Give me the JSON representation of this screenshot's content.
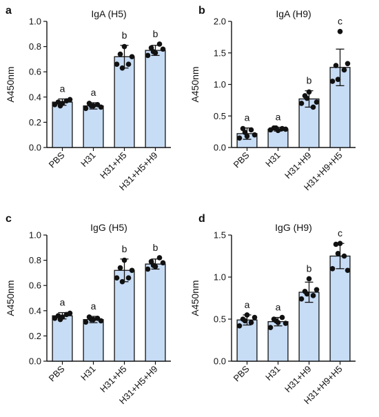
{
  "chart_data": [
    {
      "panel_label": "a",
      "type": "bar",
      "title": "IgA (H5)",
      "ylabel": "A450nm",
      "ylim": [
        0,
        1.0
      ],
      "yticks": [
        "0.0",
        "0.2",
        "0.4",
        "0.6",
        "0.8",
        "1.0"
      ],
      "categories": [
        "PBS",
        "H31",
        "H31+H5",
        "H31+H5+H9"
      ],
      "values": [
        0.36,
        0.33,
        0.72,
        0.77
      ],
      "errors": [
        0.025,
        0.025,
        0.09,
        0.04
      ],
      "letters": [
        "a",
        "a",
        "b",
        "b"
      ],
      "points": [
        [
          0.34,
          0.36,
          0.35,
          0.37,
          0.38,
          0.33
        ],
        [
          0.31,
          0.35,
          0.33,
          0.34,
          0.32,
          0.33
        ],
        [
          0.66,
          0.74,
          0.8,
          0.66,
          0.72,
          0.63
        ],
        [
          0.73,
          0.79,
          0.75,
          0.82,
          0.78,
          0.76
        ]
      ]
    },
    {
      "panel_label": "b",
      "type": "bar",
      "title": "IgA (H9)",
      "ylabel": "A450nm",
      "ylim": [
        0,
        2.0
      ],
      "yticks": [
        "0.0",
        "0.5",
        "1.0",
        "1.5",
        "2.0"
      ],
      "categories": [
        "PBS",
        "H31",
        "H31+H9",
        "H31+H9+H5"
      ],
      "values": [
        0.22,
        0.29,
        0.77,
        1.27
      ],
      "errors": [
        0.09,
        0.03,
        0.13,
        0.29
      ],
      "letters": [
        "a",
        "a",
        "b",
        "c"
      ],
      "points": [
        [
          0.15,
          0.3,
          0.18,
          0.28,
          0.2,
          0.24
        ],
        [
          0.28,
          0.31,
          0.27,
          0.3,
          0.29,
          0.31
        ],
        [
          0.7,
          0.82,
          0.88,
          0.64,
          0.72,
          0.78
        ],
        [
          1.05,
          1.3,
          1.84,
          1.23,
          1.33,
          1.08
        ]
      ]
    },
    {
      "panel_label": "c",
      "type": "bar",
      "title": "IgG (H5)",
      "ylabel": "A450nm",
      "ylim": [
        0,
        1.0
      ],
      "yticks": [
        "0.0",
        "0.2",
        "0.4",
        "0.6",
        "0.8",
        "1.0"
      ],
      "categories": [
        "PBS",
        "H31",
        "H31+H5",
        "H31+H5+H9"
      ],
      "values": [
        0.36,
        0.33,
        0.72,
        0.77
      ],
      "errors": [
        0.025,
        0.025,
        0.09,
        0.04
      ],
      "letters": [
        "a",
        "a",
        "b",
        "b"
      ],
      "points": [
        [
          0.34,
          0.36,
          0.35,
          0.37,
          0.38,
          0.33
        ],
        [
          0.31,
          0.35,
          0.33,
          0.34,
          0.32,
          0.33
        ],
        [
          0.66,
          0.74,
          0.8,
          0.66,
          0.72,
          0.63
        ],
        [
          0.73,
          0.79,
          0.75,
          0.82,
          0.78,
          0.76
        ]
      ]
    },
    {
      "panel_label": "d",
      "type": "bar",
      "title": "IgG (H9)",
      "ylabel": "A450nm",
      "ylim": [
        0,
        1.5
      ],
      "yticks": [
        "0.0",
        "0.5",
        "1.0",
        "1.5"
      ],
      "categories": [
        "PBS",
        "H31",
        "H31+H9",
        "H31+H9+H5"
      ],
      "values": [
        0.49,
        0.47,
        0.82,
        1.25
      ],
      "errors": [
        0.06,
        0.05,
        0.12,
        0.15
      ],
      "letters": [
        "a",
        "a",
        "b",
        "c"
      ],
      "points": [
        [
          0.42,
          0.5,
          0.55,
          0.46,
          0.52,
          0.48
        ],
        [
          0.4,
          0.5,
          0.46,
          0.52,
          0.45,
          0.48
        ],
        [
          0.74,
          0.83,
          0.98,
          0.78,
          0.85,
          0.8
        ],
        [
          1.1,
          1.39,
          1.4,
          1.25,
          1.08,
          1.28
        ]
      ]
    }
  ]
}
